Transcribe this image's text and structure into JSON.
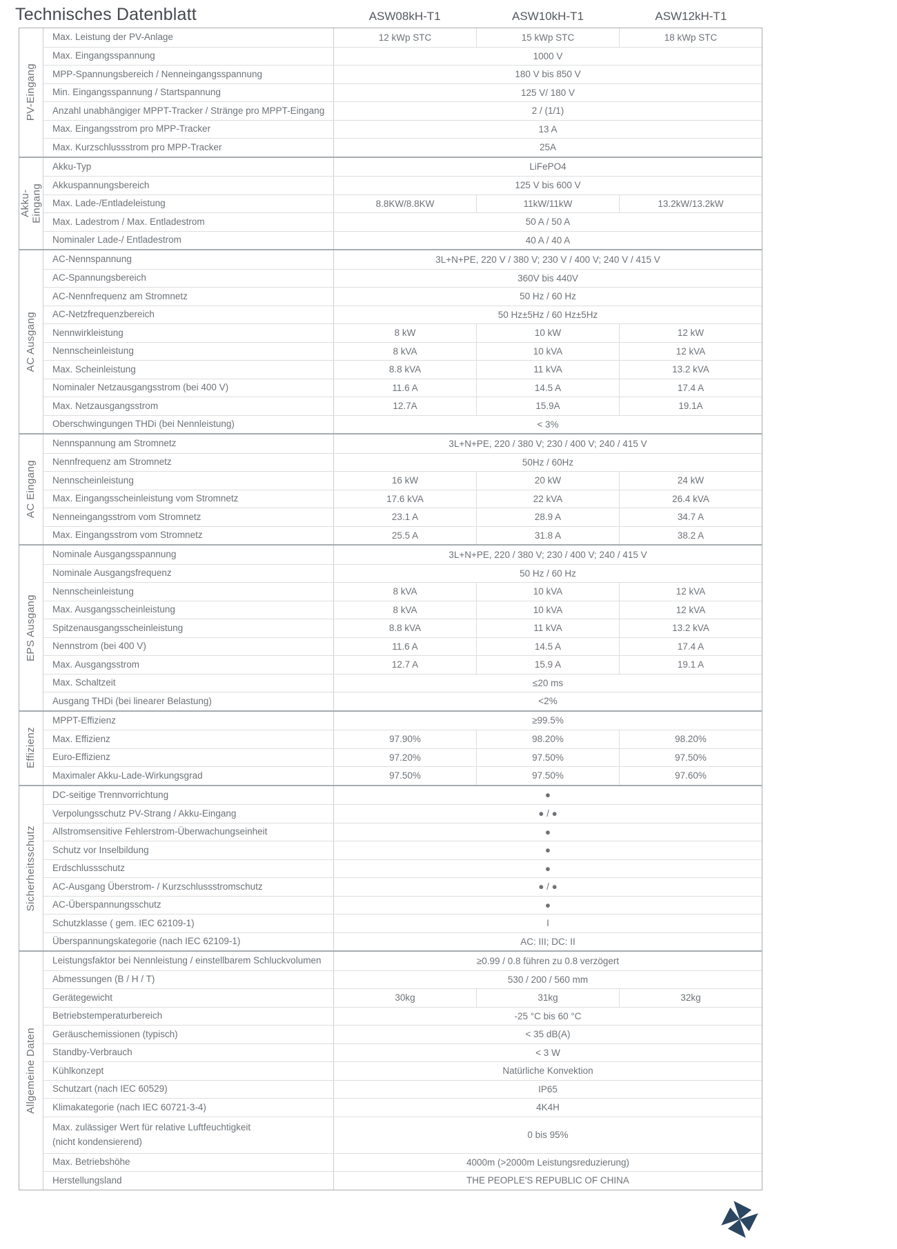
{
  "title": "Technisches Datenblatt",
  "models": [
    "ASW08kH-T1",
    "ASW10kH-T1",
    "ASW12kH-T1"
  ],
  "colors": {
    "text_gray": "#6d7277",
    "heading_gray": "#45494e",
    "border_light": "#dcdedf",
    "border_strong": "#a6abae",
    "logo_navy": "#2a4660"
  },
  "logo": {
    "name": "solplanet-pinwheel-logo"
  },
  "sections": [
    {
      "name": "PV-Eingang",
      "rows": [
        {
          "label": "Max. Leistung der PV-Anlage",
          "values": [
            "12 kWp STC",
            "15 kWp STC",
            "18 kWp STC"
          ]
        },
        {
          "label": "Max. Eingangsspannung",
          "span": "1000 V"
        },
        {
          "label": "MPP-Spannungsbereich / Nenneingangsspannung",
          "span": "180 V bis  850 V"
        },
        {
          "label": "Min. Eingangsspannung / Startspannung",
          "span": "125 V/ 180 V"
        },
        {
          "label": "Anzahl unabhängiger MPPT-Tracker / Stränge pro MPPT-Eingang",
          "span": "2 / (1/1)"
        },
        {
          "label": "Max. Eingangsstrom pro MPP-Tracker",
          "span": "13 A"
        },
        {
          "label": "Max. Kurzschlussstrom pro MPP-Tracker",
          "span": "25A"
        }
      ]
    },
    {
      "name": "Akku-\nEingang",
      "rows": [
        {
          "label": "Akku-Typ",
          "span": "LiFePO4"
        },
        {
          "label": "Akkuspannungsbereich",
          "span": "125 V bis 600 V"
        },
        {
          "label": "Max. Lade-/Entladeleistung",
          "values": [
            "8.8KW/8.8KW",
            "11kW/11kW",
            "13.2kW/13.2kW"
          ]
        },
        {
          "label": "Max. Ladestrom / Max. Entladestrom",
          "span": "50 A / 50 A"
        },
        {
          "label": "Nominaler Lade-/ Entladestrom",
          "span": "40 A / 40 A"
        }
      ]
    },
    {
      "name": "AC Ausgang",
      "rows": [
        {
          "label": "AC-Nennspannung",
          "span": "3L+N+PE, 220 V / 380 V; 230 V / 400 V; 240 V / 415 V"
        },
        {
          "label": "AC-Spannungsbereich",
          "span": "360V bis 440V"
        },
        {
          "label": "AC-Nennfrequenz am Stromnetz",
          "span": "50 Hz / 60 Hz"
        },
        {
          "label": "AC-Netzfrequenzbereich",
          "span": "50 Hz±5Hz / 60 Hz±5Hz"
        },
        {
          "label": "Nennwirkleistung",
          "values": [
            "8 kW",
            "10 kW",
            "12 kW"
          ]
        },
        {
          "label": "Nennscheinleistung",
          "values": [
            "8 kVA",
            "10 kVA",
            "12 kVA"
          ]
        },
        {
          "label": "Max. Scheinleistung",
          "values": [
            "8.8 kVA",
            "11 kVA",
            "13.2 kVA"
          ]
        },
        {
          "label": "Nominaler Netzausgangsstrom (bei 400 V)",
          "values": [
            "11.6 A",
            "14.5 A",
            "17.4 A"
          ]
        },
        {
          "label": "Max. Netzausgangsstrom",
          "values": [
            "12.7A",
            "15.9A",
            "19.1A"
          ]
        },
        {
          "label": "Oberschwingungen THDi (bei Nennleistung)",
          "span": "< 3%"
        }
      ]
    },
    {
      "name": "AC Eingang",
      "rows": [
        {
          "label": "Nennspannung am Stromnetz",
          "span": "3L+N+PE, 220 / 380 V; 230 / 400 V; 240 / 415 V"
        },
        {
          "label": "Nennfrequenz am Stromnetz",
          "span": "50Hz / 60Hz"
        },
        {
          "label": "Nennscheinleistung",
          "values": [
            "16 kW",
            "20 kW",
            "24 kW"
          ]
        },
        {
          "label": "Max. Eingangsscheinleistung vom Stromnetz",
          "values": [
            "17.6 kVA",
            "22 kVA",
            "26.4 kVA"
          ]
        },
        {
          "label": "Nenneingangsstrom vom Stromnetz",
          "values": [
            "23.1 A",
            "28.9 A",
            "34.7 A"
          ]
        },
        {
          "label": "Max. Eingangsstrom vom Stromnetz",
          "values": [
            "25.5 A",
            "31.8 A",
            "38.2 A"
          ]
        }
      ]
    },
    {
      "name": "EPS Ausgang",
      "rows": [
        {
          "label": "Nominale Ausgangsspannung",
          "span": "3L+N+PE, 220 / 380 V; 230 / 400 V; 240 / 415 V"
        },
        {
          "label": "Nominale Ausgangsfrequenz",
          "span": "50 Hz / 60 Hz"
        },
        {
          "label": "Nennscheinleistung",
          "values": [
            "8 kVA",
            "10 kVA",
            "12 kVA"
          ]
        },
        {
          "label": "Max. Ausgangsscheinleistung",
          "values": [
            "8 kVA",
            "10 kVA",
            "12 kVA"
          ]
        },
        {
          "label": "Spitzenausgangsscheinleistung",
          "values": [
            "8.8 kVA",
            "11 kVA",
            "13.2 kVA"
          ]
        },
        {
          "label": "Nennstrom (bei 400 V)",
          "values": [
            "11.6 A",
            "14.5 A",
            "17.4 A"
          ]
        },
        {
          "label": "Max. Ausgangsstrom",
          "values": [
            "12.7 A",
            "15.9 A",
            "19.1 A"
          ]
        },
        {
          "label": "Max. Schaltzeit",
          "span": "≤20 ms"
        },
        {
          "label": "Ausgang THDi (bei linearer Belastung)",
          "span": "<2%"
        }
      ]
    },
    {
      "name": "Effizienz",
      "rows": [
        {
          "label": "MPPT-Effizienz",
          "span": "≥99.5%"
        },
        {
          "label": "Max. Effizienz",
          "values": [
            "97.90%",
            "98.20%",
            "98.20%"
          ]
        },
        {
          "label": "Euro-Effizienz",
          "values": [
            "97.20%",
            "97.50%",
            "97.50%"
          ]
        },
        {
          "label": "Maximaler Akku-Lade-Wirkungsgrad",
          "values": [
            "97.50%",
            "97.50%",
            "97.60%"
          ]
        }
      ]
    },
    {
      "name": "Sicherheitsschutz",
      "rows": [
        {
          "label": "DC-seitige Trennvorrichtung",
          "span": "●"
        },
        {
          "label": "Verpolungsschutz PV-Strang / Akku-Eingang",
          "span": "● / ●"
        },
        {
          "label": "Allstromsensitive Fehlerstrom-Überwachungseinheit",
          "span": "●"
        },
        {
          "label": "Schutz vor Inselbildung",
          "span": "●"
        },
        {
          "label": "Erdschlussschutz",
          "span": "●"
        },
        {
          "label": "AC-Ausgang Überstrom- / Kurzschlussstromschutz",
          "span": "● / ●"
        },
        {
          "label": "AC-Überspannungsschutz",
          "span": "●"
        },
        {
          "label": "Schutzklasse ( gem. IEC 62109-1)",
          "span": "I"
        },
        {
          "label": "Überspannungskategorie (nach IEC 62109-1)",
          "span": "AC: III; DC: II"
        }
      ]
    },
    {
      "name": "Allgemeine Daten",
      "rows": [
        {
          "label": "Leistungsfaktor bei Nennleistung / einstellbarem Schluckvolumen",
          "span": "≥0.99 / 0.8 führen zu 0.8 verzögert"
        },
        {
          "label": "Abmessungen (B / H / T)",
          "span": "530 / 200 / 560 mm"
        },
        {
          "label": "Gerätegewicht",
          "values": [
            "30kg",
            "31kg",
            "32kg"
          ]
        },
        {
          "label": "Betriebstemperaturbereich",
          "span": "-25 °C bis 60 °C"
        },
        {
          "label": "Geräuschemissionen (typisch)",
          "span": "<  35 dB(A)"
        },
        {
          "label": "Standby-Verbrauch",
          "span": "< 3 W"
        },
        {
          "label": "Kühlkonzept",
          "span": "Natürliche Konvektion"
        },
        {
          "label": "Schutzart (nach IEC 60529)",
          "span": "IP65"
        },
        {
          "label": "Klimakategorie (nach IEC 60721-3-4)",
          "span": "4K4H"
        },
        {
          "label": "Max. zulässiger Wert für relative Luftfeuchtigkeit\n(nicht kondensierend)",
          "span": "0 bis 95%",
          "tall": true
        },
        {
          "label": "Max. Betriebshöhe",
          "span": "4000m (>2000m Leistungsreduzierung)"
        },
        {
          "label": "Herstellungsland",
          "span": "THE PEOPLE'S REPUBLIC OF CHINA"
        }
      ]
    }
  ]
}
